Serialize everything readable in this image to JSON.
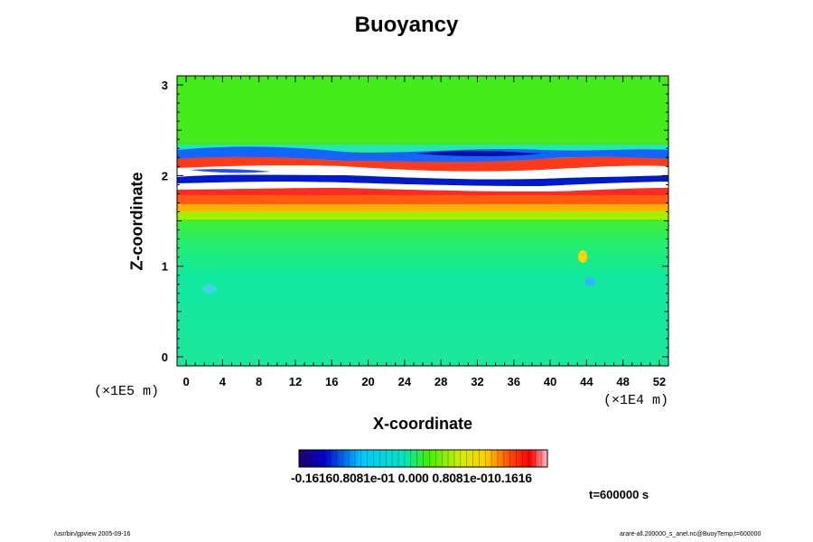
{
  "chart_data": {
    "type": "heatmap",
    "title": "Buoyancy",
    "xlabel": "X-coordinate",
    "ylabel": "Z-coordinate",
    "x_unit": "(×1E4 m)",
    "y_unit": "(×1E5 m)",
    "xlim": [
      -1,
      53
    ],
    "ylim": [
      -0.1,
      3.1
    ],
    "x_ticks": [
      "0",
      "4",
      "8",
      "12",
      "16",
      "20",
      "24",
      "28",
      "32",
      "36",
      "40",
      "44",
      "48",
      "52"
    ],
    "y_ticks": [
      "0",
      "1",
      "2",
      "3"
    ],
    "colorbar": {
      "range": [
        -0.1616,
        0.1616
      ],
      "tick_labels": [
        "-0.1616",
        "-0.8081e-01",
        "0.000",
        "0.8081e-01",
        "0.1616"
      ],
      "label_text": "-0.16160.8081e-01 0.000 0.8081e-010.1616"
    },
    "fields": {
      "background_z_0_to_1_5": "cyan-green, approximately -0.02",
      "layer_z_1_5_to_1_8": "red-orange band, approximately 0.12",
      "layer_z_1_75_to_2_3": "alternating white/blue/red stripes, exceeding color range",
      "region_z_2_3_to_3": "green, approximately 0.0"
    },
    "annotation_time": "t=600000 s"
  },
  "footer": {
    "left": "/usr/bin/gpview 2005-09-16",
    "right": "arare-all.200000_s_anel.nc@BuoyTemp,t=600000"
  }
}
